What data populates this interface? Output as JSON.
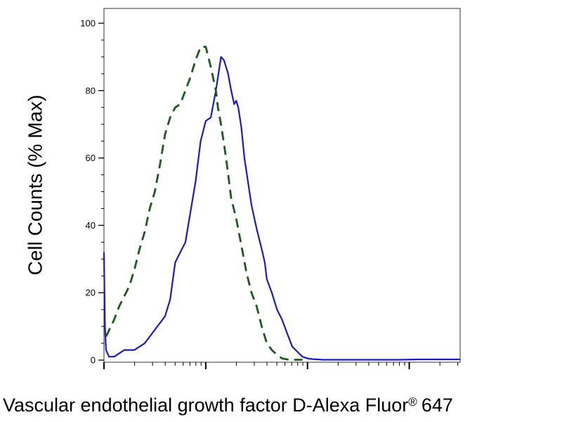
{
  "chart_data": {
    "type": "line",
    "title": "",
    "xlabel": "Vascular endothelial growth factor D-Alexa Fluor",
    "xlabel_mark": "®",
    "xlabel_suffix": "647",
    "ylabel": "Cell Counts (% Max)",
    "x_scale": "log",
    "xlim": [
      -1,
      2.5
    ],
    "ylim": [
      0,
      100
    ],
    "yticks": [
      0,
      20,
      40,
      60,
      80,
      100
    ],
    "ytick_labels": [
      "0",
      "20",
      "40",
      "60",
      "80",
      "100"
    ],
    "grid": false,
    "legend": "none",
    "series": [
      {
        "style": "solid",
        "color": "#1a1ac8",
        "x": [
          -1.0,
          -0.99,
          -0.98,
          -0.95,
          -0.9,
          -0.85,
          -0.8,
          -0.75,
          -0.7,
          -0.6,
          -0.55,
          -0.5,
          -0.45,
          -0.4,
          -0.35,
          -0.3,
          -0.25,
          -0.2,
          -0.1,
          -0.05,
          0.0,
          0.05,
          0.1,
          0.15,
          0.18,
          0.22,
          0.25,
          0.28,
          0.3,
          0.32,
          0.35,
          0.38,
          0.4,
          0.45,
          0.5,
          0.55,
          0.58,
          0.6,
          0.65,
          0.7,
          0.75,
          0.8,
          0.85,
          0.9,
          0.95,
          1.0,
          1.05,
          1.1,
          1.15,
          1.2,
          1.25,
          1.3,
          1.35,
          1.45,
          1.55,
          1.7,
          1.9,
          2.1,
          2.3,
          2.5
        ],
        "y": [
          32,
          10,
          3,
          1,
          1,
          2,
          3,
          3,
          3,
          5,
          7,
          9,
          11,
          13,
          18,
          29,
          32,
          35,
          53,
          65,
          71,
          72,
          80,
          90,
          89,
          85,
          80,
          76,
          77,
          75,
          69,
          60,
          56,
          46,
          39,
          33,
          29,
          24,
          20,
          15,
          12,
          8,
          4,
          2.5,
          1,
          0.5,
          0.3,
          0.2,
          0.1,
          0.1,
          0.1,
          0.1,
          0.1,
          0.1,
          0.1,
          0.1,
          0.1,
          0.2,
          0.2,
          0.2
        ]
      },
      {
        "style": "dashed",
        "color": "#1e5a1e",
        "x": [
          -0.98,
          -0.9,
          -0.85,
          -0.8,
          -0.75,
          -0.7,
          -0.65,
          -0.6,
          -0.55,
          -0.5,
          -0.45,
          -0.4,
          -0.35,
          -0.3,
          -0.25,
          -0.2,
          -0.15,
          -0.1,
          -0.05,
          0.0,
          0.05,
          0.1,
          0.12,
          0.15,
          0.2,
          0.25,
          0.3,
          0.35,
          0.4,
          0.45,
          0.5,
          0.55,
          0.6,
          0.65,
          0.7,
          0.75,
          0.8,
          0.85,
          0.9,
          0.95
        ],
        "y": [
          7,
          12,
          16,
          19,
          22,
          27,
          33,
          38,
          45,
          50,
          58,
          67,
          72,
          75,
          76,
          80,
          84,
          89,
          93,
          93,
          87,
          80,
          75,
          70,
          60,
          48,
          42,
          34,
          26,
          20,
          16,
          10,
          5,
          3,
          1.5,
          0.5,
          0.2,
          0.1,
          0.1,
          0.1
        ]
      }
    ]
  }
}
